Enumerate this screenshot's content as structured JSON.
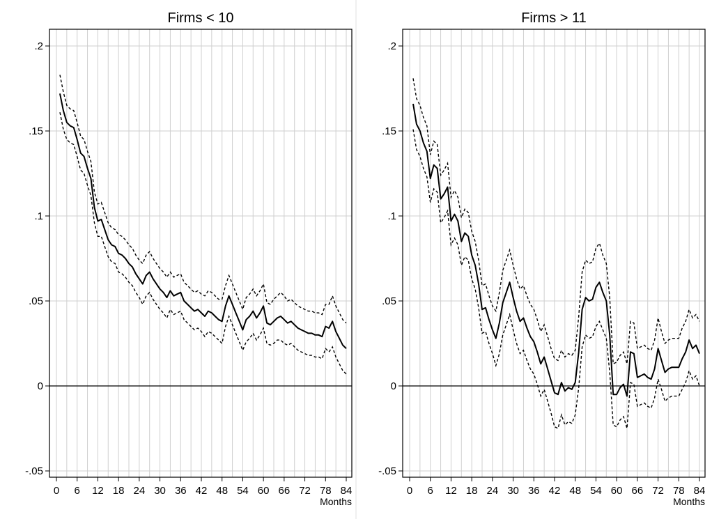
{
  "chart_data": [
    {
      "type": "line",
      "title": "Firms < 10",
      "xlabel": "Months",
      "ylabel": "",
      "xlim": [
        0,
        84
      ],
      "ylim": [
        -0.05,
        0.2
      ],
      "x_ticks": [
        0,
        6,
        12,
        18,
        24,
        30,
        36,
        42,
        48,
        54,
        60,
        66,
        72,
        78,
        84
      ],
      "x_tick_labels": [
        "0",
        "6",
        "12",
        "18",
        "24",
        "30",
        "36",
        "42",
        "48",
        "54",
        "60",
        "66",
        "72",
        "78",
        "84"
      ],
      "y_ticks": [
        -0.05,
        0,
        0.05,
        0.1,
        0.15,
        0.2
      ],
      "y_tick_labels": [
        "-.05",
        "0",
        ".05",
        ".1",
        ".15",
        ".2"
      ],
      "grid": true,
      "reference_line_y": 0,
      "x": [
        1,
        2,
        3,
        4,
        5,
        6,
        7,
        8,
        9,
        10,
        11,
        12,
        13,
        14,
        15,
        16,
        17,
        18,
        19,
        20,
        21,
        22,
        23,
        24,
        25,
        26,
        27,
        28,
        29,
        30,
        31,
        32,
        33,
        34,
        35,
        36,
        37,
        38,
        39,
        40,
        41,
        42,
        43,
        44,
        45,
        46,
        47,
        48,
        49,
        50,
        51,
        52,
        53,
        54,
        55,
        56,
        57,
        58,
        59,
        60,
        61,
        62,
        63,
        64,
        65,
        66,
        67,
        68,
        69,
        70,
        71,
        72,
        73,
        74,
        75,
        76,
        77,
        78,
        79,
        80,
        81,
        82,
        83,
        84
      ],
      "series": [
        {
          "style": "solid",
          "values": [
            0.172,
            0.162,
            0.155,
            0.153,
            0.152,
            0.145,
            0.137,
            0.135,
            0.128,
            0.122,
            0.105,
            0.097,
            0.098,
            0.092,
            0.086,
            0.083,
            0.082,
            0.078,
            0.077,
            0.075,
            0.072,
            0.07,
            0.066,
            0.063,
            0.06,
            0.065,
            0.067,
            0.063,
            0.06,
            0.057,
            0.055,
            0.052,
            0.056,
            0.053,
            0.054,
            0.055,
            0.05,
            0.048,
            0.046,
            0.044,
            0.045,
            0.043,
            0.041,
            0.044,
            0.043,
            0.041,
            0.039,
            0.038,
            0.047,
            0.053,
            0.048,
            0.043,
            0.038,
            0.033,
            0.039,
            0.041,
            0.044,
            0.04,
            0.043,
            0.047,
            0.037,
            0.036,
            0.038,
            0.04,
            0.041,
            0.039,
            0.037,
            0.038,
            0.036,
            0.034,
            0.033,
            0.032,
            0.031,
            0.031,
            0.03,
            0.03,
            0.029,
            0.035,
            0.034,
            0.038,
            0.032,
            0.028,
            0.024,
            0.022
          ]
        },
        {
          "style": "dashed",
          "values": [
            0.183,
            0.173,
            0.165,
            0.163,
            0.162,
            0.155,
            0.147,
            0.145,
            0.138,
            0.132,
            0.114,
            0.107,
            0.108,
            0.102,
            0.096,
            0.093,
            0.092,
            0.089,
            0.088,
            0.086,
            0.083,
            0.081,
            0.077,
            0.074,
            0.072,
            0.077,
            0.079,
            0.075,
            0.072,
            0.069,
            0.067,
            0.064,
            0.067,
            0.064,
            0.065,
            0.066,
            0.061,
            0.059,
            0.057,
            0.055,
            0.056,
            0.054,
            0.053,
            0.056,
            0.055,
            0.053,
            0.051,
            0.051,
            0.059,
            0.065,
            0.06,
            0.055,
            0.05,
            0.045,
            0.052,
            0.054,
            0.057,
            0.053,
            0.056,
            0.06,
            0.049,
            0.048,
            0.051,
            0.053,
            0.055,
            0.053,
            0.05,
            0.051,
            0.049,
            0.047,
            0.046,
            0.045,
            0.044,
            0.044,
            0.043,
            0.043,
            0.042,
            0.048,
            0.048,
            0.053,
            0.047,
            0.043,
            0.039,
            0.037
          ]
        },
        {
          "style": "dashed",
          "values": [
            0.161,
            0.151,
            0.145,
            0.143,
            0.142,
            0.135,
            0.127,
            0.125,
            0.118,
            0.112,
            0.096,
            0.088,
            0.088,
            0.082,
            0.076,
            0.073,
            0.072,
            0.067,
            0.066,
            0.064,
            0.061,
            0.059,
            0.055,
            0.052,
            0.048,
            0.053,
            0.055,
            0.051,
            0.048,
            0.045,
            0.043,
            0.04,
            0.045,
            0.042,
            0.043,
            0.044,
            0.039,
            0.037,
            0.035,
            0.033,
            0.034,
            0.032,
            0.029,
            0.032,
            0.031,
            0.029,
            0.027,
            0.025,
            0.035,
            0.041,
            0.036,
            0.031,
            0.026,
            0.021,
            0.026,
            0.028,
            0.031,
            0.027,
            0.03,
            0.034,
            0.025,
            0.024,
            0.025,
            0.027,
            0.027,
            0.025,
            0.024,
            0.025,
            0.023,
            0.021,
            0.02,
            0.019,
            0.018,
            0.018,
            0.017,
            0.017,
            0.016,
            0.022,
            0.02,
            0.023,
            0.017,
            0.013,
            0.009,
            0.007
          ]
        }
      ]
    },
    {
      "type": "line",
      "title": "Firms > 11",
      "xlabel": "Months",
      "ylabel": "",
      "xlim": [
        0,
        84
      ],
      "ylim": [
        -0.05,
        0.2
      ],
      "x_ticks": [
        0,
        6,
        12,
        18,
        24,
        30,
        36,
        42,
        48,
        54,
        60,
        66,
        72,
        78,
        84
      ],
      "x_tick_labels": [
        "0",
        "6",
        "12",
        "18",
        "24",
        "30",
        "36",
        "42",
        "48",
        "54",
        "60",
        "66",
        "72",
        "78",
        "84"
      ],
      "y_ticks": [
        -0.05,
        0,
        0.05,
        0.1,
        0.15,
        0.2
      ],
      "y_tick_labels": [
        "-.05",
        "0",
        ".05",
        ".1",
        ".15",
        ".2"
      ],
      "grid": true,
      "reference_line_y": 0,
      "x": [
        1,
        2,
        3,
        4,
        5,
        6,
        7,
        8,
        9,
        10,
        11,
        12,
        13,
        14,
        15,
        16,
        17,
        18,
        19,
        20,
        21,
        22,
        23,
        24,
        25,
        26,
        27,
        28,
        29,
        30,
        31,
        32,
        33,
        34,
        35,
        36,
        37,
        38,
        39,
        40,
        41,
        42,
        43,
        44,
        45,
        46,
        47,
        48,
        49,
        50,
        51,
        52,
        53,
        54,
        55,
        56,
        57,
        58,
        59,
        60,
        61,
        62,
        63,
        64,
        65,
        66,
        67,
        68,
        69,
        70,
        71,
        72,
        73,
        74,
        75,
        76,
        77,
        78,
        79,
        80,
        81,
        82,
        83,
        84
      ],
      "series": [
        {
          "style": "solid",
          "values": [
            0.166,
            0.154,
            0.15,
            0.143,
            0.138,
            0.122,
            0.13,
            0.128,
            0.11,
            0.113,
            0.117,
            0.097,
            0.101,
            0.097,
            0.085,
            0.09,
            0.088,
            0.077,
            0.071,
            0.06,
            0.045,
            0.046,
            0.039,
            0.033,
            0.028,
            0.037,
            0.049,
            0.055,
            0.061,
            0.052,
            0.044,
            0.038,
            0.04,
            0.034,
            0.029,
            0.026,
            0.02,
            0.013,
            0.017,
            0.01,
            0.003,
            -0.004,
            -0.005,
            0.002,
            -0.003,
            -0.001,
            -0.002,
            0.002,
            0.02,
            0.045,
            0.052,
            0.05,
            0.051,
            0.058,
            0.061,
            0.055,
            0.05,
            0.03,
            -0.005,
            -0.005,
            -0.001,
            0.001,
            -0.006,
            0.02,
            0.019,
            0.005,
            0.006,
            0.007,
            0.005,
            0.004,
            0.01,
            0.022,
            0.015,
            0.008,
            0.01,
            0.011,
            0.011,
            0.011,
            0.016,
            0.02,
            0.027,
            0.022,
            0.024,
            0.019
          ]
        },
        {
          "style": "dashed",
          "values": [
            0.181,
            0.169,
            0.165,
            0.158,
            0.153,
            0.136,
            0.144,
            0.142,
            0.124,
            0.127,
            0.131,
            0.111,
            0.115,
            0.111,
            0.099,
            0.104,
            0.102,
            0.091,
            0.085,
            0.074,
            0.059,
            0.06,
            0.053,
            0.047,
            0.044,
            0.055,
            0.068,
            0.074,
            0.08,
            0.071,
            0.063,
            0.057,
            0.059,
            0.053,
            0.048,
            0.045,
            0.039,
            0.032,
            0.036,
            0.029,
            0.022,
            0.016,
            0.015,
            0.021,
            0.017,
            0.019,
            0.018,
            0.021,
            0.041,
            0.067,
            0.074,
            0.072,
            0.073,
            0.081,
            0.084,
            0.077,
            0.072,
            0.052,
            0.013,
            0.014,
            0.018,
            0.02,
            0.013,
            0.038,
            0.037,
            0.022,
            0.023,
            0.024,
            0.022,
            0.021,
            0.027,
            0.04,
            0.032,
            0.025,
            0.027,
            0.028,
            0.028,
            0.028,
            0.034,
            0.038,
            0.045,
            0.04,
            0.042,
            0.038
          ]
        },
        {
          "style": "dashed",
          "values": [
            0.151,
            0.139,
            0.135,
            0.128,
            0.123,
            0.108,
            0.116,
            0.114,
            0.096,
            0.099,
            0.103,
            0.083,
            0.087,
            0.083,
            0.071,
            0.076,
            0.074,
            0.063,
            0.057,
            0.046,
            0.031,
            0.032,
            0.025,
            0.019,
            0.012,
            0.019,
            0.03,
            0.036,
            0.042,
            0.033,
            0.025,
            0.019,
            0.021,
            0.015,
            0.01,
            0.007,
            0.001,
            -0.006,
            -0.002,
            -0.009,
            -0.016,
            -0.024,
            -0.025,
            -0.017,
            -0.023,
            -0.021,
            -0.022,
            -0.017,
            -0.001,
            0.023,
            0.03,
            0.028,
            0.029,
            0.035,
            0.038,
            0.033,
            0.028,
            0.008,
            -0.023,
            -0.024,
            -0.02,
            -0.018,
            -0.025,
            0.002,
            0.001,
            -0.012,
            -0.011,
            -0.01,
            -0.012,
            -0.013,
            -0.007,
            0.004,
            -0.002,
            -0.009,
            -0.007,
            -0.006,
            -0.006,
            -0.006,
            -0.002,
            0.002,
            0.009,
            0.004,
            0.006,
            0.0
          ]
        }
      ]
    }
  ]
}
